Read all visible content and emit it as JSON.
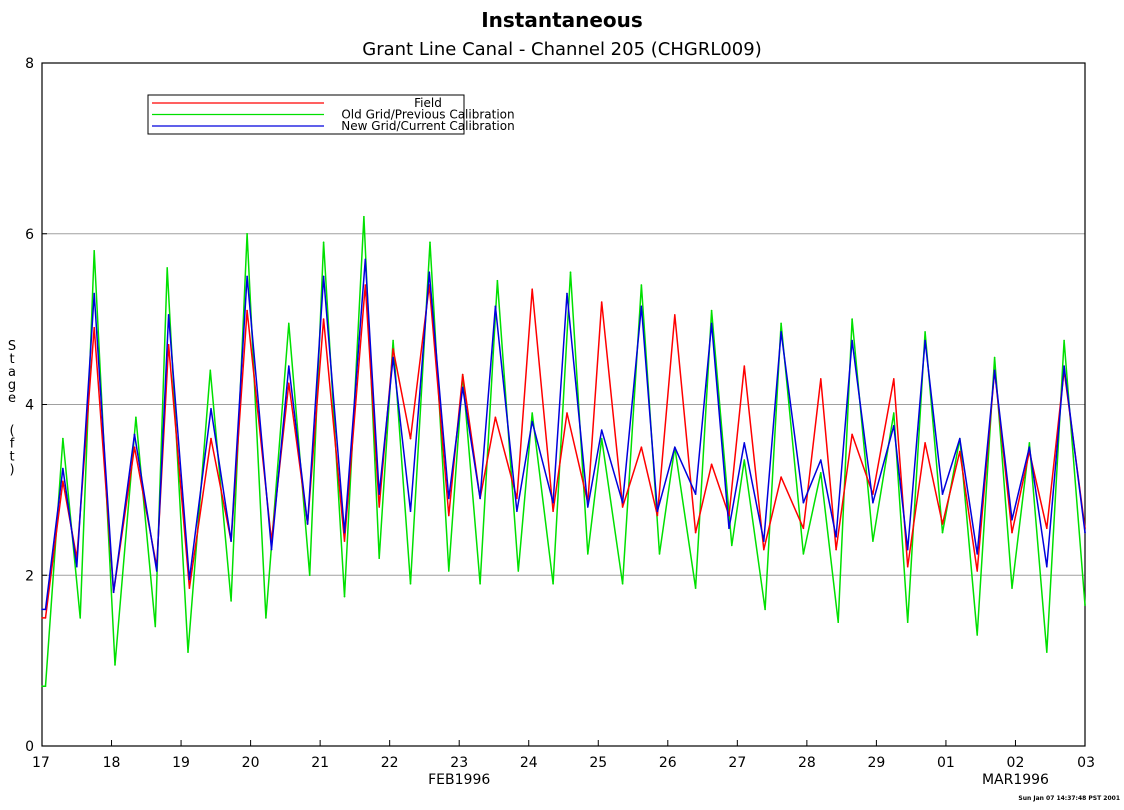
{
  "chart_data": {
    "type": "line",
    "title": "Instantaneous",
    "subtitle": "Grant Line Canal - Channel 205 (CHGRL009)",
    "ylabel": "Stage (ft)",
    "ylim": [
      0,
      8
    ],
    "yticks": [
      0,
      2,
      4,
      6,
      8
    ],
    "xlim": [
      0,
      15
    ],
    "xticks": [
      {
        "x": 0,
        "label": "17"
      },
      {
        "x": 1,
        "label": "18"
      },
      {
        "x": 2,
        "label": "19"
      },
      {
        "x": 3,
        "label": "20"
      },
      {
        "x": 4,
        "label": "21"
      },
      {
        "x": 5,
        "label": "22"
      },
      {
        "x": 6,
        "label": "23"
      },
      {
        "x": 7,
        "label": "24"
      },
      {
        "x": 8,
        "label": "25"
      },
      {
        "x": 9,
        "label": "26"
      },
      {
        "x": 10,
        "label": "27"
      },
      {
        "x": 11,
        "label": "28"
      },
      {
        "x": 12,
        "label": "29"
      },
      {
        "x": 13,
        "label": "01"
      },
      {
        "x": 14,
        "label": "02"
      },
      {
        "x": 15,
        "label": "03"
      }
    ],
    "month_labels": [
      {
        "x": 6,
        "label": "FEB1996"
      },
      {
        "x": 14,
        "label": "MAR1996"
      }
    ],
    "grid": {
      "horizontal": [
        2,
        4,
        6
      ]
    },
    "legend_position": "top-left",
    "series": [
      {
        "name": "Field",
        "color": "#ff0000",
        "x": [
          0,
          0.05,
          0.3,
          0.5,
          0.75,
          1.03,
          1.33,
          1.65,
          1.82,
          2.12,
          2.43,
          2.72,
          2.95,
          3.3,
          3.55,
          3.82,
          4.05,
          4.35,
          4.65,
          4.85,
          5.05,
          5.3,
          5.57,
          5.85,
          6.05,
          6.3,
          6.52,
          6.83,
          7.05,
          7.35,
          7.55,
          7.85,
          8.05,
          8.35,
          8.62,
          8.85,
          9.1,
          9.4,
          9.63,
          9.88,
          10.1,
          10.38,
          10.63,
          10.95,
          11.2,
          11.42,
          11.65,
          11.95,
          12.25,
          12.45,
          12.7,
          12.95,
          13.2,
          13.45,
          13.7,
          13.95,
          14.2,
          14.45,
          14.7,
          15
        ],
        "y": [
          1.5,
          1.5,
          3.1,
          2.2,
          4.9,
          1.8,
          3.5,
          2.1,
          4.7,
          1.85,
          3.6,
          2.4,
          5.1,
          2.4,
          4.25,
          2.6,
          5.0,
          2.4,
          5.4,
          2.8,
          4.65,
          3.6,
          5.4,
          2.7,
          4.35,
          2.9,
          3.85,
          2.9,
          5.35,
          2.75,
          3.9,
          2.85,
          5.2,
          2.8,
          3.5,
          2.7,
          5.05,
          2.5,
          3.3,
          2.7,
          4.45,
          2.3,
          3.15,
          2.55,
          4.3,
          2.3,
          3.65,
          2.95,
          4.3,
          2.1,
          3.55,
          2.6,
          3.45,
          2.05,
          4.4,
          2.5,
          3.45,
          2.55,
          4.4,
          2.55
        ]
      },
      {
        "name": "Old Grid/Previous Calibration",
        "color": "#00e000",
        "x": [
          0,
          0.05,
          0.3,
          0.55,
          0.75,
          1.05,
          1.35,
          1.63,
          1.8,
          2.1,
          2.42,
          2.72,
          2.95,
          3.22,
          3.55,
          3.85,
          4.05,
          4.35,
          4.63,
          4.85,
          5.05,
          5.3,
          5.58,
          5.85,
          6.05,
          6.3,
          6.55,
          6.85,
          7.05,
          7.35,
          7.6,
          7.85,
          8.05,
          8.35,
          8.62,
          8.88,
          9.1,
          9.4,
          9.63,
          9.92,
          10.1,
          10.4,
          10.63,
          10.95,
          11.2,
          11.45,
          11.65,
          11.95,
          12.25,
          12.45,
          12.7,
          12.95,
          13.2,
          13.45,
          13.7,
          13.95,
          14.2,
          14.45,
          14.7,
          15
        ],
        "y": [
          0.7,
          0.7,
          3.6,
          1.5,
          5.8,
          0.95,
          3.85,
          1.4,
          5.6,
          1.1,
          4.4,
          1.7,
          6.0,
          1.5,
          4.95,
          2.0,
          5.9,
          1.75,
          6.2,
          2.2,
          4.75,
          1.9,
          5.9,
          2.05,
          4.35,
          1.9,
          5.45,
          2.05,
          3.9,
          1.9,
          5.55,
          2.25,
          3.6,
          1.9,
          5.4,
          2.25,
          3.5,
          1.85,
          5.1,
          2.35,
          3.35,
          1.6,
          4.95,
          2.25,
          3.2,
          1.45,
          5.0,
          2.4,
          3.9,
          1.45,
          4.85,
          2.5,
          3.6,
          1.3,
          4.55,
          1.85,
          3.55,
          1.1,
          4.75,
          1.65
        ]
      },
      {
        "name": "New Grid/Current Calibration",
        "color": "#0000dd",
        "x": [
          0,
          0.05,
          0.3,
          0.5,
          0.75,
          1.03,
          1.33,
          1.65,
          1.82,
          2.12,
          2.43,
          2.72,
          2.95,
          3.3,
          3.55,
          3.82,
          4.05,
          4.35,
          4.65,
          4.85,
          5.05,
          5.3,
          5.57,
          5.85,
          6.05,
          6.3,
          6.52,
          6.83,
          7.05,
          7.35,
          7.55,
          7.85,
          8.05,
          8.35,
          8.62,
          8.85,
          9.1,
          9.4,
          9.63,
          9.88,
          10.1,
          10.38,
          10.63,
          10.95,
          11.2,
          11.42,
          11.65,
          11.95,
          12.25,
          12.45,
          12.7,
          12.95,
          13.2,
          13.45,
          13.7,
          13.95,
          14.2,
          14.45,
          14.7,
          15
        ],
        "y": [
          1.6,
          1.6,
          3.25,
          2.1,
          5.3,
          1.8,
          3.65,
          2.05,
          5.05,
          1.95,
          3.95,
          2.4,
          5.5,
          2.3,
          4.45,
          2.6,
          5.5,
          2.5,
          5.7,
          2.95,
          4.55,
          2.75,
          5.55,
          2.9,
          4.2,
          2.9,
          5.15,
          2.75,
          3.8,
          2.85,
          5.3,
          2.8,
          3.7,
          2.85,
          5.15,
          2.75,
          3.5,
          2.95,
          4.95,
          2.55,
          3.55,
          2.4,
          4.85,
          2.85,
          3.35,
          2.45,
          4.75,
          2.85,
          3.75,
          2.3,
          4.75,
          2.95,
          3.6,
          2.25,
          4.4,
          2.65,
          3.5,
          2.1,
          4.45,
          2.5
        ]
      }
    ]
  },
  "footer_stamp": "Sun Jan 07 14:37:48 PST 2001"
}
